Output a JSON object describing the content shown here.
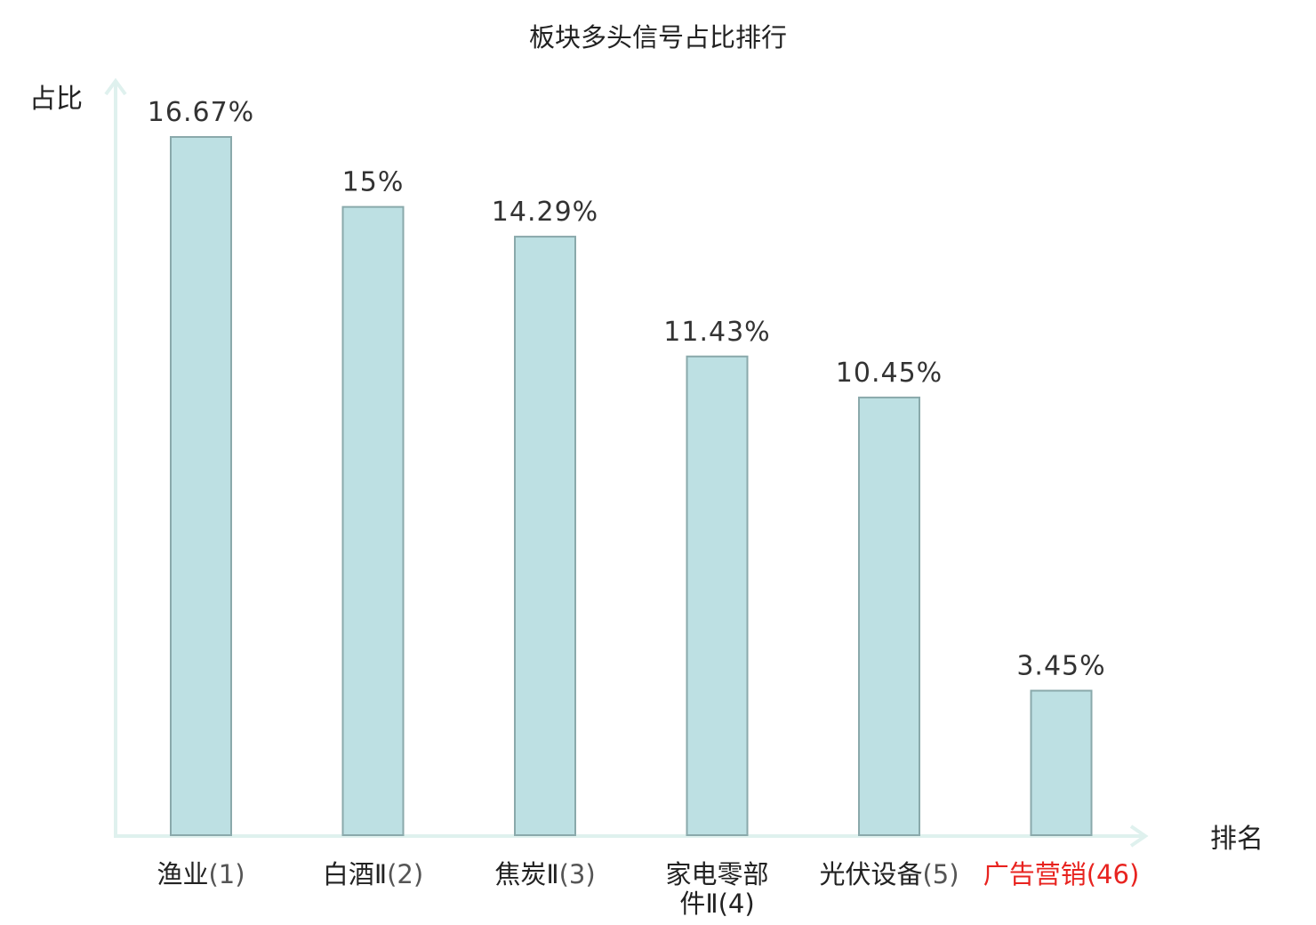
{
  "chart_data": {
    "type": "bar",
    "title": "板块多头信号占比排行",
    "ylabel": "占比",
    "xlabel": "排名",
    "categories": [
      {
        "name": "渔业",
        "rank": "(1)"
      },
      {
        "name": "白酒Ⅱ",
        "rank": "(2)"
      },
      {
        "name": "焦炭Ⅱ",
        "rank": "(3)"
      },
      {
        "name": "家电零部件Ⅱ",
        "rank": "(4)",
        "lines": [
          "家电零部",
          "件Ⅱ(4)"
        ]
      },
      {
        "name": "光伏设备",
        "rank": "(5)"
      },
      {
        "name": "广告营销",
        "rank": "(46)",
        "highlight": true
      }
    ],
    "values": [
      16.67,
      15,
      14.29,
      11.43,
      10.45,
      3.45
    ],
    "value_labels": [
      "16.67%",
      "15%",
      "14.29%",
      "11.43%",
      "10.45%",
      "3.45%"
    ],
    "ylim": [
      0,
      16.67
    ],
    "grid": false,
    "legend": "none",
    "colors": {
      "bar_fill": "#bde0e3",
      "bar_stroke": "#8aa9ab",
      "axis": "#dff1ee",
      "text": "#222222",
      "value_text": "#333333",
      "rank_text": "#555555",
      "highlight": "#e8231f"
    }
  }
}
